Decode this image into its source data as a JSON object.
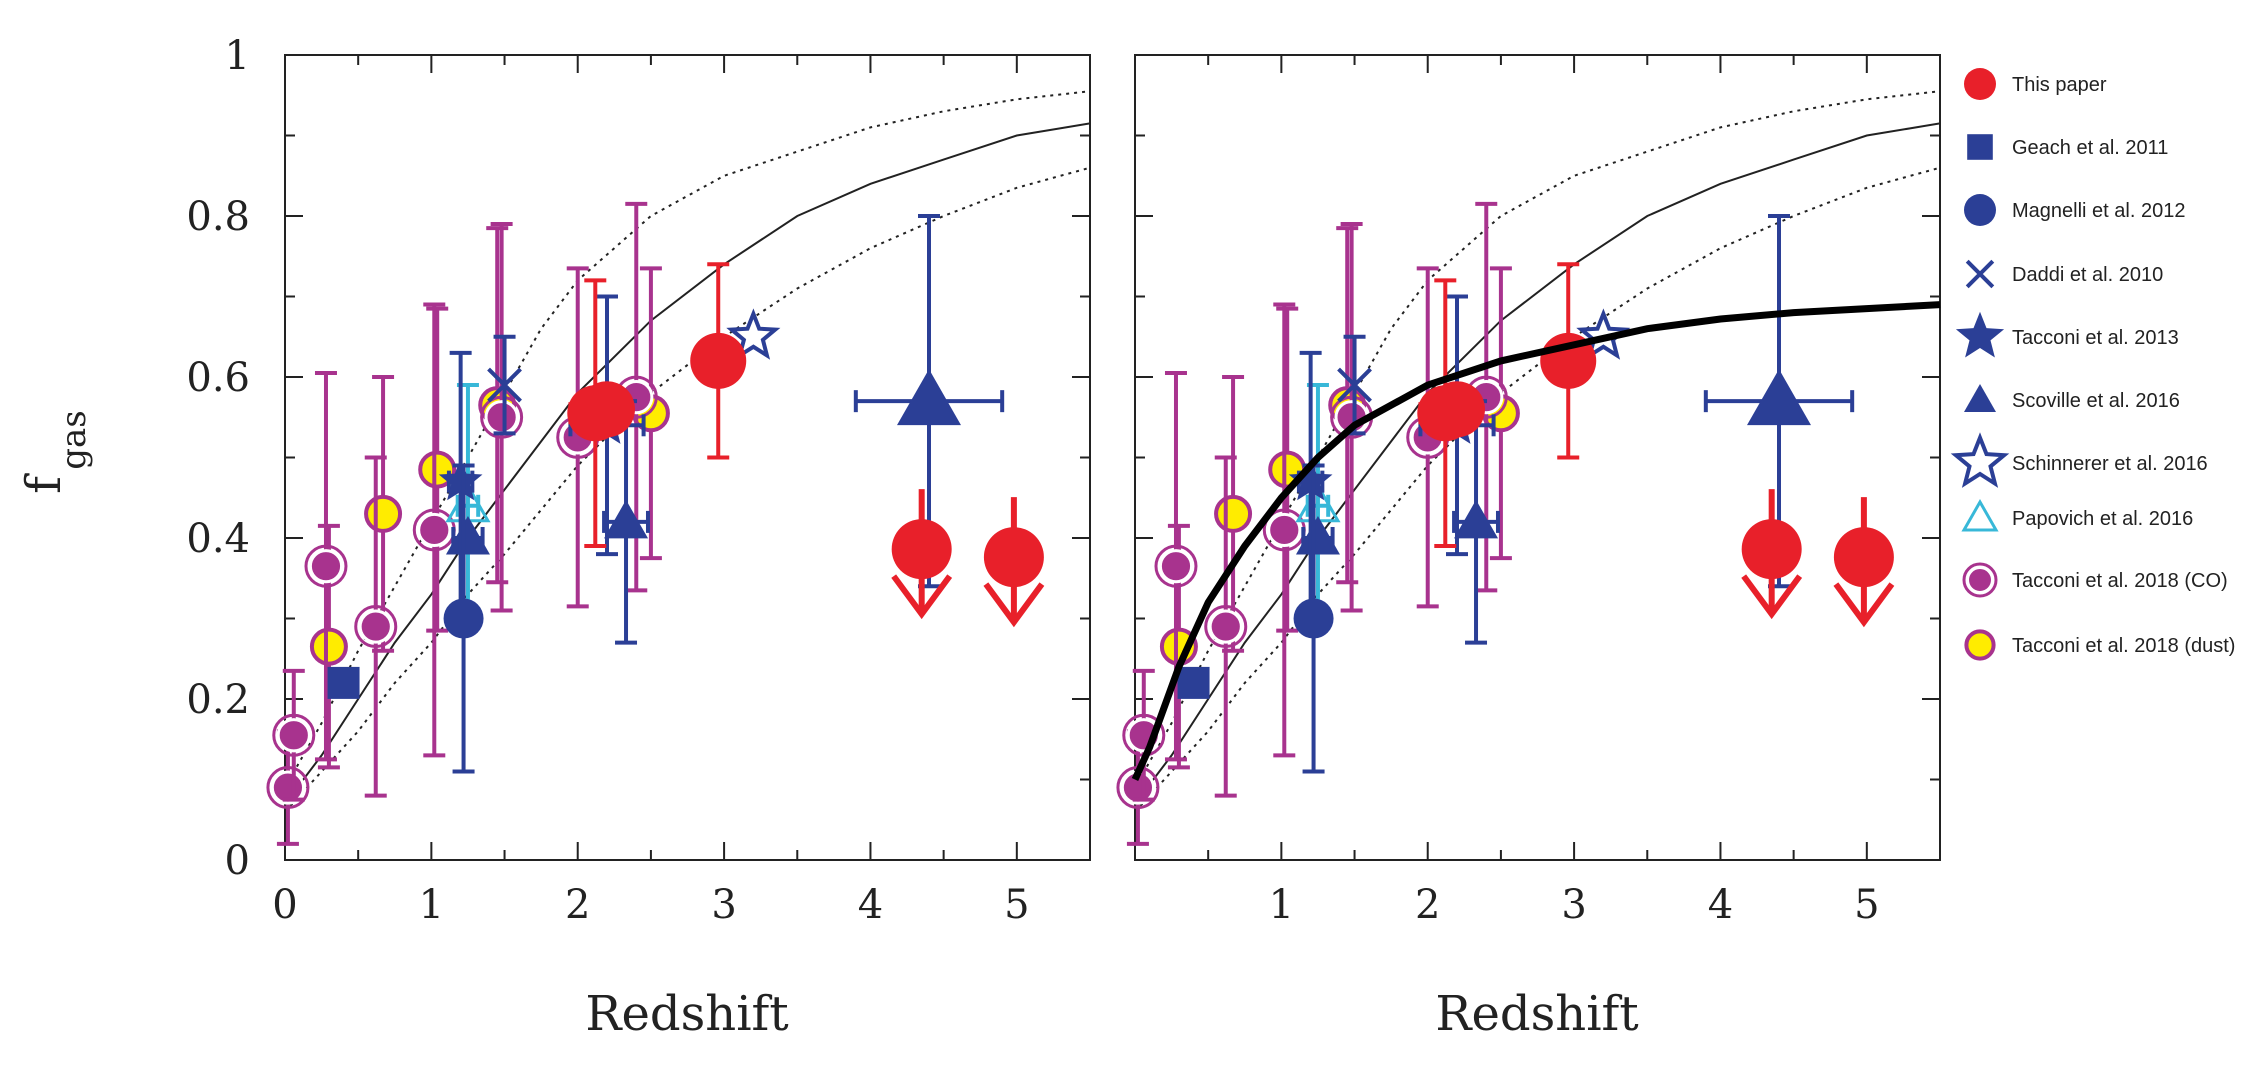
{
  "chart_data": {
    "type": "scatter",
    "ylabel_main": "f",
    "ylabel_sub": "gas",
    "ylim": [
      0,
      1
    ],
    "y_ticks": [
      "0",
      "0.2",
      "0.4",
      "0.6",
      "0.8",
      "1"
    ],
    "xlim": [
      0,
      5.5
    ],
    "colors": {
      "red": "#e8202a",
      "blue": "#2b3f96",
      "purple": "#a8338e",
      "cyan": "#38b8d8",
      "yellow": "#ffec00"
    },
    "panels": [
      {
        "xlabel": "Redshift",
        "x_ticks": [
          "0",
          "1",
          "2",
          "3",
          "4",
          "5"
        ],
        "fit_curve": false
      },
      {
        "xlabel": "Redshift",
        "x_ticks": [
          "1",
          "2",
          "3",
          "4",
          "5"
        ],
        "fit_curve": true
      }
    ],
    "model_curves": {
      "median": [
        [
          0,
          0.07
        ],
        [
          0.25,
          0.13
        ],
        [
          0.5,
          0.2
        ],
        [
          0.75,
          0.27
        ],
        [
          1,
          0.33
        ],
        [
          1.25,
          0.4
        ],
        [
          1.5,
          0.46
        ],
        [
          2,
          0.58
        ],
        [
          2.5,
          0.67
        ],
        [
          3,
          0.74
        ],
        [
          3.5,
          0.8
        ],
        [
          4,
          0.84
        ],
        [
          4.5,
          0.87
        ],
        [
          5,
          0.9
        ],
        [
          5.5,
          0.915
        ]
      ],
      "upper": [
        [
          0,
          0.09
        ],
        [
          0.25,
          0.17
        ],
        [
          0.5,
          0.26
        ],
        [
          0.75,
          0.34
        ],
        [
          1,
          0.42
        ],
        [
          1.25,
          0.5
        ],
        [
          1.5,
          0.58
        ],
        [
          1.75,
          0.66
        ],
        [
          2,
          0.72
        ],
        [
          2.5,
          0.8
        ],
        [
          3,
          0.85
        ],
        [
          3.5,
          0.88
        ],
        [
          4,
          0.91
        ],
        [
          4.5,
          0.93
        ],
        [
          5,
          0.945
        ],
        [
          5.5,
          0.955
        ]
      ],
      "lower": [
        [
          0,
          0.06
        ],
        [
          0.25,
          0.11
        ],
        [
          0.5,
          0.16
        ],
        [
          0.75,
          0.22
        ],
        [
          1,
          0.27
        ],
        [
          1.25,
          0.33
        ],
        [
          1.5,
          0.38
        ],
        [
          2,
          0.49
        ],
        [
          2.5,
          0.58
        ],
        [
          3,
          0.65
        ],
        [
          3.5,
          0.71
        ],
        [
          4,
          0.76
        ],
        [
          4.5,
          0.8
        ],
        [
          5,
          0.835
        ],
        [
          5.5,
          0.86
        ]
      ],
      "fit": [
        [
          0,
          0.1
        ],
        [
          0.1,
          0.14
        ],
        [
          0.2,
          0.19
        ],
        [
          0.3,
          0.24
        ],
        [
          0.5,
          0.32
        ],
        [
          0.75,
          0.39
        ],
        [
          1,
          0.45
        ],
        [
          1.25,
          0.5
        ],
        [
          1.5,
          0.54
        ],
        [
          2,
          0.59
        ],
        [
          2.5,
          0.62
        ],
        [
          3,
          0.64
        ],
        [
          3.5,
          0.66
        ],
        [
          4,
          0.672
        ],
        [
          4.5,
          0.68
        ],
        [
          5,
          0.685
        ],
        [
          5.5,
          0.69
        ]
      ]
    },
    "series": [
      {
        "name": "This paper",
        "marker": "filled-circle",
        "color": "red",
        "points": [
          {
            "x": 2.12,
            "y": 0.555,
            "xerr": 0.17,
            "yerr": 0.165
          },
          {
            "x": 2.2,
            "y": 0.56,
            "xerr": 0,
            "yerr": 0
          },
          {
            "x": 2.96,
            "y": 0.62,
            "xerr": 0.12,
            "yerr": 0.12
          }
        ],
        "upper_limits": [
          {
            "x": 4.35,
            "y": 0.38
          },
          {
            "x": 4.98,
            "y": 0.37
          }
        ]
      },
      {
        "name": "Geach et al. 2011",
        "marker": "filled-square",
        "color": "blue",
        "points": [
          {
            "x": 0.4,
            "y": 0.22,
            "xerr": 0,
            "yerr": 0
          }
        ]
      },
      {
        "name": "Magnelli et al. 2012",
        "marker": "filled-circle",
        "color": "blue",
        "points": [
          {
            "x": 1.22,
            "y": 0.3,
            "xerr": 0.08,
            "yerr": 0.19
          }
        ]
      },
      {
        "name": "Daddi et al. 2010",
        "marker": "cross",
        "color": "blue",
        "points": [
          {
            "x": 1.5,
            "y": 0.59,
            "xerr": 0,
            "yerr": 0.06
          }
        ]
      },
      {
        "name": "Tacconi et al. 2013",
        "marker": "filled-star",
        "color": "blue",
        "points": [
          {
            "x": 1.2,
            "y": 0.47,
            "xerr": 0.08,
            "yerr": 0.16
          },
          {
            "x": 2.2,
            "y": 0.54,
            "xerr": 0.25,
            "yerr": 0.16
          }
        ]
      },
      {
        "name": "Scoville et al. 2016",
        "marker": "filled-triangle",
        "color": "blue",
        "points": [
          {
            "x": 1.25,
            "y": 0.4,
            "xerr": 0.1,
            "yerr": 0
          },
          {
            "x": 2.33,
            "y": 0.42,
            "xerr": 0.15,
            "yerr": 0.15
          },
          {
            "x": 4.4,
            "y": 0.57,
            "xerr": 0.5,
            "yerr": 0.23
          }
        ]
      },
      {
        "name": "Schinnerer et al. 2016",
        "marker": "open-star",
        "color": "blue",
        "points": [
          {
            "x": 3.2,
            "y": 0.65,
            "xerr": 0,
            "yerr": 0
          }
        ]
      },
      {
        "name": "Papovich et al. 2016",
        "marker": "open-triangle",
        "color": "cyan",
        "points": [
          {
            "x": 1.25,
            "y": 0.44,
            "xerr": 0.07,
            "yerr": 0.15
          }
        ]
      },
      {
        "name": "Tacconi et al. 2018 (CO)",
        "marker": "ringed-circle",
        "color": "purple",
        "points": [
          {
            "x": 0.02,
            "y": 0.09,
            "xerr": 0,
            "yerr": 0.07
          },
          {
            "x": 0.06,
            "y": 0.155,
            "xerr": 0,
            "yerr": 0.08
          },
          {
            "x": 0.28,
            "y": 0.365,
            "xerr": 0,
            "yerr": 0.24
          },
          {
            "x": 0.62,
            "y": 0.29,
            "xerr": 0,
            "yerr": 0.21
          },
          {
            "x": 1.02,
            "y": 0.41,
            "xerr": 0,
            "yerr": 0.28
          },
          {
            "x": 1.48,
            "y": 0.55,
            "xerr": 0,
            "yerr": 0.24
          },
          {
            "x": 2.0,
            "y": 0.525,
            "xerr": 0,
            "yerr": 0.21
          },
          {
            "x": 2.4,
            "y": 0.575,
            "xerr": 0,
            "yerr": 0.24
          }
        ]
      },
      {
        "name": "Tacconi et al. 2018 (dust)",
        "marker": "yellow-circle",
        "color": "yellow",
        "points": [
          {
            "x": 0.3,
            "y": 0.265,
            "xerr": 0,
            "yerr": 0.15
          },
          {
            "x": 0.67,
            "y": 0.43,
            "xerr": 0,
            "yerr": 0.17
          },
          {
            "x": 1.04,
            "y": 0.485,
            "xerr": 0,
            "yerr": 0.2
          },
          {
            "x": 1.45,
            "y": 0.565,
            "xerr": 0,
            "yerr": 0.22
          },
          {
            "x": 2.5,
            "y": 0.555,
            "xerr": 0,
            "yerr": 0.18
          }
        ]
      }
    ],
    "legend": [
      {
        "label": "This paper",
        "marker": "filled-circle",
        "color": "red"
      },
      {
        "label": "Geach et al. 2011",
        "marker": "filled-square",
        "color": "blue"
      },
      {
        "label": "Magnelli et al. 2012",
        "marker": "filled-circle",
        "color": "blue"
      },
      {
        "label": "Daddi et al. 2010",
        "marker": "cross",
        "color": "blue"
      },
      {
        "label": "Tacconi et al. 2013",
        "marker": "filled-star",
        "color": "blue"
      },
      {
        "label": "Scoville et al. 2016",
        "marker": "filled-triangle",
        "color": "blue"
      },
      {
        "label": "Schinnerer et al. 2016",
        "marker": "open-star",
        "color": "blue"
      },
      {
        "label": "Papovich et al. 2016",
        "marker": "open-triangle",
        "color": "cyan"
      },
      {
        "label": "Tacconi et al. 2018 (CO)",
        "marker": "ringed-circle",
        "color": "purple"
      },
      {
        "label": "Tacconi et al. 2018 (dust)",
        "marker": "yellow-circle",
        "color": "yellow"
      }
    ]
  }
}
